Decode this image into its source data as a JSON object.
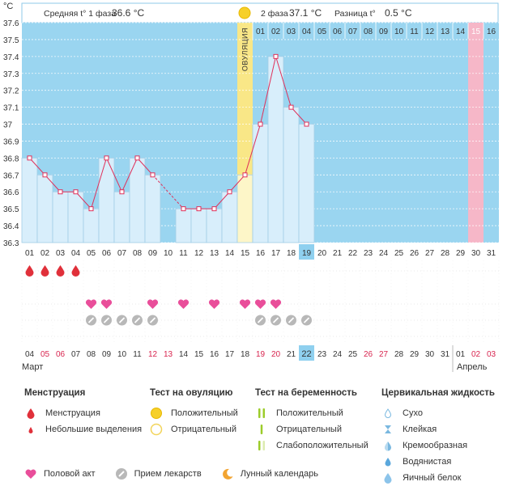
{
  "header": {
    "unit": "°C",
    "phase1_label": "Средняя t° 1 фаза",
    "phase1_value": "36.6 °C",
    "phase2_label": "2 фаза",
    "phase2_value": "37.1 °C",
    "diff_label": "Разница t°",
    "diff_value": "0.5 °C"
  },
  "ovulation_label": "ОВУЛЯЦИЯ",
  "colors": {
    "sky": "#9ad5f0",
    "bar": "#d8eefb",
    "bar_border": "#a3cde6",
    "ovulation": "#f9e787",
    "ovulation_bar": "#fdf6c8",
    "pink_col": "#f6b7c8",
    "line": "#e0305a",
    "weekend": "#d8254f",
    "highlight": "#8fd0ef"
  },
  "chart_data": {
    "type": "line",
    "ylim": [
      36.3,
      37.6
    ],
    "yticks": [
      "37.6",
      "37.5",
      "37.4",
      "37.3",
      "37.2",
      "37.1",
      "37",
      "36.9",
      "36.8",
      "36.7",
      "36.6",
      "36.5",
      "36.4",
      "36.3"
    ],
    "cycle_days": [
      "01",
      "02",
      "03",
      "04",
      "05",
      "06",
      "07",
      "08",
      "09",
      "10",
      "11",
      "12",
      "13",
      "14",
      "15",
      "16",
      "17",
      "18",
      "19",
      "20",
      "21",
      "22",
      "23",
      "24",
      "25",
      "26",
      "27",
      "28",
      "29",
      "30",
      "31"
    ],
    "temps": [
      36.8,
      36.7,
      36.6,
      36.6,
      36.5,
      36.8,
      36.6,
      36.8,
      36.7,
      null,
      36.5,
      36.5,
      36.5,
      36.6,
      36.7,
      37.0,
      37.4,
      37.1,
      37.0,
      null,
      null,
      null,
      null,
      null,
      null,
      null,
      null,
      null,
      null,
      null,
      null
    ],
    "ovulation_day": "15",
    "current_day": "19",
    "post_ovulation_days": [
      "01",
      "02",
      "03",
      "04",
      "05",
      "06",
      "07",
      "08",
      "09",
      "10",
      "11",
      "12",
      "13",
      "14",
      "15",
      "16"
    ],
    "post_ovulation_highlight": "15",
    "menstruation_days": [
      "01",
      "02",
      "03",
      "04"
    ],
    "intercourse_days": [
      "05",
      "06",
      "09",
      "11",
      "13",
      "15",
      "16",
      "17"
    ],
    "medication_days": [
      "05",
      "06",
      "07",
      "08",
      "09",
      "16",
      "17",
      "18",
      "19"
    ],
    "calendar_dates": [
      "04",
      "05",
      "06",
      "07",
      "08",
      "09",
      "10",
      "11",
      "12",
      "13",
      "14",
      "15",
      "16",
      "17",
      "18",
      "19",
      "20",
      "21",
      "22",
      "23",
      "24",
      "25",
      "26",
      "27",
      "28",
      "29",
      "30",
      "31",
      "01",
      "02",
      "03"
    ],
    "weekend_dates": [
      "05",
      "06",
      "12",
      "13",
      "19",
      "20",
      "26",
      "27",
      "02",
      "03"
    ],
    "today_date": "22",
    "month_start": "Март",
    "month_next": "Апрель"
  },
  "legend": {
    "menstruation": {
      "title": "Менструация",
      "items": [
        "Менструация",
        "Небольшие выделения"
      ]
    },
    "ovulation_test": {
      "title": "Тест на овуляцию",
      "items": [
        "Положительный",
        "Отрицательный"
      ]
    },
    "pregnancy_test": {
      "title": "Тест на беременность",
      "items": [
        "Положительный",
        "Отрицательный",
        "Слабоположительный"
      ]
    },
    "cervical": {
      "title": "Цервикальная жидкость",
      "items": [
        "Сухо",
        "Клейкая",
        "Кремообразная",
        "Водянистая",
        "Яичный белок"
      ]
    }
  },
  "bottom_legend": [
    "Половой акт",
    "Прием лекарств",
    "Лунный календарь"
  ]
}
